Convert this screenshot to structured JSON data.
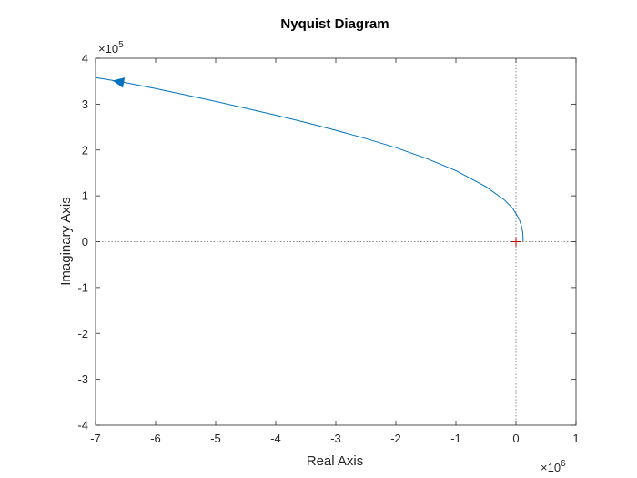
{
  "chart_data": {
    "type": "line",
    "title": "Nyquist Diagram",
    "xlabel": "Real Axis",
    "ylabel": "Imaginary Axis",
    "x_multiplier": {
      "base": "×10",
      "exponent": "6"
    },
    "y_multiplier": {
      "base": "×10",
      "exponent": "5"
    },
    "xlim": [
      -7,
      1
    ],
    "ylim": [
      -4,
      4
    ],
    "xticks": [
      -7,
      -6,
      -5,
      -4,
      -3,
      -2,
      -1,
      0,
      1
    ],
    "yticks": [
      -4,
      -3,
      -2,
      -1,
      0,
      1,
      2,
      3,
      4
    ],
    "xtick_labels": [
      "-7",
      "-6",
      "-5",
      "-4",
      "-3",
      "-2",
      "-1",
      "0",
      "1"
    ],
    "ytick_labels": [
      "-4",
      "-3",
      "-2",
      "-1",
      "0",
      "1",
      "2",
      "3",
      "4"
    ],
    "grid": false,
    "reference_lines": {
      "x": 0,
      "y": 0,
      "style": "dotted"
    },
    "critical_point": {
      "x": -1e-06,
      "y": 0,
      "marker": "+",
      "color": "#cc0000"
    },
    "series": [
      {
        "color": "#0072bd",
        "arrow_direction": "toward-start",
        "x": [
          0.12,
          0.118,
          0.11,
          0.09,
          0.05,
          -0.05,
          -0.2,
          -0.5,
          -1.0,
          -1.5,
          -2.0,
          -2.5,
          -3.0,
          -3.5,
          -4.0,
          -4.5,
          -5.0,
          -5.5,
          -6.0,
          -6.5,
          -7.0
        ],
        "y": [
          0.0,
          0.1,
          0.22,
          0.35,
          0.5,
          0.72,
          0.92,
          1.2,
          1.55,
          1.82,
          2.05,
          2.25,
          2.43,
          2.6,
          2.76,
          2.91,
          3.06,
          3.2,
          3.34,
          3.47,
          3.58
        ]
      }
    ]
  }
}
